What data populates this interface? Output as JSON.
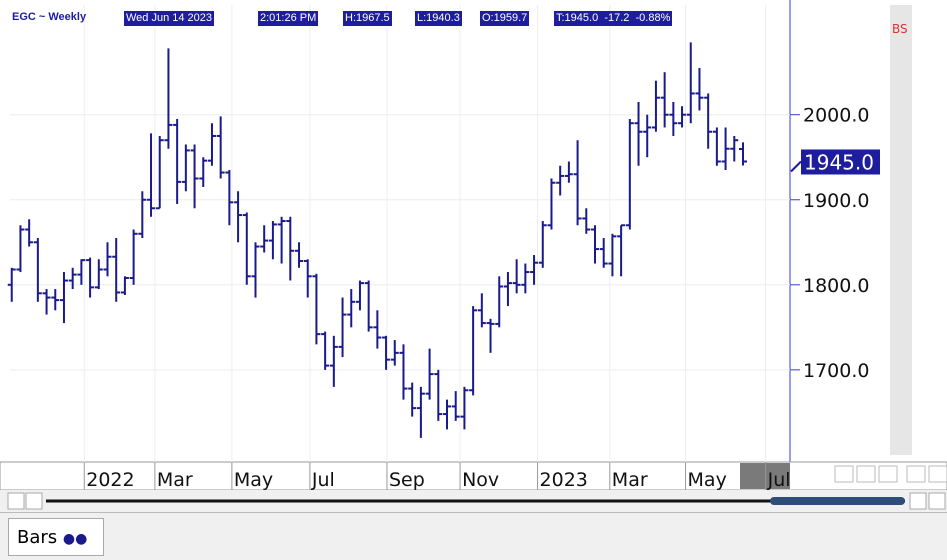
{
  "header": {
    "symbol": "EGC ~ Weekly",
    "date": "Wed Jun 14 2023",
    "time": "2:01:26 PM",
    "high": "H:1967.5",
    "low": "L:1940.3",
    "open": "O:1959.7",
    "last": "T:1945.0  -17.2  -0.88%",
    "bs": "BS"
  },
  "tab": "Bars",
  "chart_data": {
    "type": "ohlc",
    "color": "#1a1a8c",
    "grid": true,
    "last_label": "1945.0",
    "ylim": [
      1594,
      2129
    ],
    "yticks": [
      {
        "value": 1700,
        "label": "1700.0"
      },
      {
        "value": 1800,
        "label": "1800.0"
      },
      {
        "value": 1900,
        "label": "1900.0"
      },
      {
        "value": 2000,
        "label": "2000.0"
      }
    ],
    "xlim": [
      -0.2,
      89.4
    ],
    "xticks": [
      {
        "value": 8.33,
        "label": "2022"
      },
      {
        "value": 16.44,
        "label": "Mar"
      },
      {
        "value": 25.29,
        "label": "May"
      },
      {
        "value": 34.25,
        "label": "Jul"
      },
      {
        "value": 43.1,
        "label": "Sep"
      },
      {
        "value": 51.5,
        "label": "Nov"
      },
      {
        "value": 60.4,
        "label": "2023"
      },
      {
        "value": 68.7,
        "label": "Mar"
      },
      {
        "value": 77.4,
        "label": "May"
      },
      {
        "value": 86.6,
        "label": "Jul"
      }
    ],
    "open": [
      1800,
      1818,
      1865,
      1850,
      1790,
      1785,
      1782,
      1805,
      1812,
      1829,
      1797,
      1818,
      1833,
      1791,
      1808,
      1860,
      1900,
      1890,
      1970,
      1988,
      1921,
      1958,
      1925,
      1946,
      1975,
      1932,
      1897,
      1882,
      1810,
      1845,
      1852,
      1871,
      1875,
      1840,
      1828,
      1810,
      1742,
      1705,
      1727,
      1765,
      1780,
      1802,
      1750,
      1738,
      1712,
      1720,
      1678,
      1655,
      1672,
      1695,
      1648,
      1657,
      1645,
      1676,
      1770,
      1755,
      1754,
      1798,
      1802,
      1800,
      1815,
      1826,
      1870,
      1920,
      1928,
      1930,
      1878,
      1865,
      1842,
      1825,
      1857,
      1870,
      1990,
      1980,
      1985,
      2020,
      2000,
      1990,
      2000,
      2025,
      2020,
      1980,
      1945,
      1960,
      1959.7
    ],
    "high": [
      1820,
      1870,
      1877,
      1855,
      1795,
      1795,
      1815,
      1820,
      1830,
      1832,
      1830,
      1850,
      1855,
      1810,
      1865,
      1910,
      1978,
      1975,
      2078,
      1995,
      1965,
      1965,
      1950,
      1990,
      1998,
      1935,
      1910,
      1885,
      1850,
      1870,
      1875,
      1880,
      1880,
      1850,
      1830,
      1813,
      1745,
      1740,
      1785,
      1795,
      1805,
      1805,
      1770,
      1740,
      1735,
      1730,
      1685,
      1680,
      1725,
      1700,
      1665,
      1675,
      1680,
      1775,
      1790,
      1760,
      1810,
      1815,
      1830,
      1825,
      1835,
      1875,
      1925,
      1940,
      1945,
      1970,
      1890,
      1870,
      1855,
      1860,
      1870,
      1995,
      2015,
      2000,
      2040,
      2050,
      2015,
      2010,
      2085,
      2055,
      2025,
      1985,
      1985,
      1975,
      1967.5
    ],
    "low": [
      1780,
      1815,
      1845,
      1780,
      1765,
      1770,
      1755,
      1795,
      1800,
      1785,
      1795,
      1810,
      1780,
      1788,
      1800,
      1855,
      1880,
      1890,
      1960,
      1895,
      1910,
      1890,
      1915,
      1940,
      1925,
      1870,
      1850,
      1800,
      1785,
      1838,
      1830,
      1825,
      1805,
      1820,
      1785,
      1730,
      1700,
      1680,
      1715,
      1750,
      1770,
      1745,
      1725,
      1700,
      1705,
      1665,
      1645,
      1620,
      1665,
      1640,
      1630,
      1640,
      1630,
      1670,
      1750,
      1720,
      1750,
      1775,
      1790,
      1790,
      1800,
      1820,
      1865,
      1905,
      1920,
      1870,
      1860,
      1825,
      1820,
      1810,
      1810,
      1865,
      1940,
      1950,
      1980,
      1985,
      1975,
      1985,
      1990,
      2005,
      1960,
      1940,
      1935,
      1945,
      1940.3
    ],
    "close": [
      1818,
      1865,
      1850,
      1790,
      1785,
      1782,
      1805,
      1812,
      1829,
      1797,
      1818,
      1833,
      1791,
      1808,
      1860,
      1900,
      1890,
      1970,
      1988,
      1921,
      1958,
      1925,
      1946,
      1975,
      1932,
      1897,
      1882,
      1810,
      1845,
      1852,
      1871,
      1875,
      1840,
      1828,
      1810,
      1742,
      1705,
      1727,
      1765,
      1780,
      1802,
      1750,
      1738,
      1712,
      1720,
      1678,
      1655,
      1672,
      1695,
      1648,
      1657,
      1645,
      1676,
      1770,
      1755,
      1754,
      1798,
      1802,
      1800,
      1815,
      1826,
      1870,
      1920,
      1928,
      1930,
      1878,
      1865,
      1842,
      1825,
      1857,
      1870,
      1990,
      1980,
      1985,
      2020,
      2000,
      1990,
      2000,
      2025,
      2020,
      1980,
      1945,
      1960,
      1970,
      1945
    ]
  }
}
